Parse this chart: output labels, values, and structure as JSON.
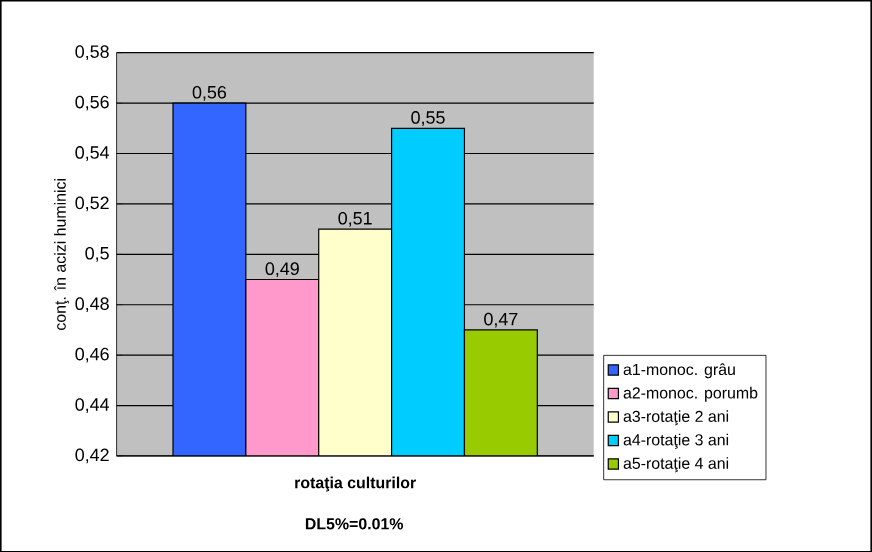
{
  "chart_data": {
    "type": "bar",
    "xlabel": "rotaţia culturilor",
    "ylabel": "conţ. în acizi huminici",
    "annotations": [
      "DL5%=0.01%"
    ],
    "categories": [
      null
    ],
    "series": [
      {
        "name": "a1-monoc. grâu",
        "color": "#3366ff",
        "values": [
          0.56
        ],
        "value_labels": [
          "0,56"
        ]
      },
      {
        "name": "a2-monoc. porumb",
        "color": "#ff99cc",
        "values": [
          0.49
        ],
        "value_labels": [
          "0,49"
        ]
      },
      {
        "name": "a3-rotaţie 2 ani",
        "color": "#ffffcc",
        "values": [
          0.51
        ],
        "value_labels": [
          "0,51"
        ]
      },
      {
        "name": "a4-rotaţie 3 ani",
        "color": "#00ccff",
        "values": [
          0.55
        ],
        "value_labels": [
          "0,55"
        ]
      },
      {
        "name": "a5-rotaţie 4 ani",
        "color": "#99cc00",
        "values": [
          0.47
        ],
        "value_labels": [
          "0,47"
        ]
      }
    ],
    "ylim": [
      0.42,
      0.58
    ],
    "yticks": [
      {
        "value": 0.42,
        "label": "0,42"
      },
      {
        "value": 0.44,
        "label": "0,44"
      },
      {
        "value": 0.46,
        "label": "0,46"
      },
      {
        "value": 0.48,
        "label": "0,48"
      },
      {
        "value": 0.5,
        "label": "0,5"
      },
      {
        "value": 0.52,
        "label": "0,52"
      },
      {
        "value": 0.54,
        "label": "0,54"
      },
      {
        "value": 0.56,
        "label": "0,56"
      },
      {
        "value": 0.58,
        "label": "0,58"
      }
    ],
    "grid": "y",
    "legend": "right"
  }
}
